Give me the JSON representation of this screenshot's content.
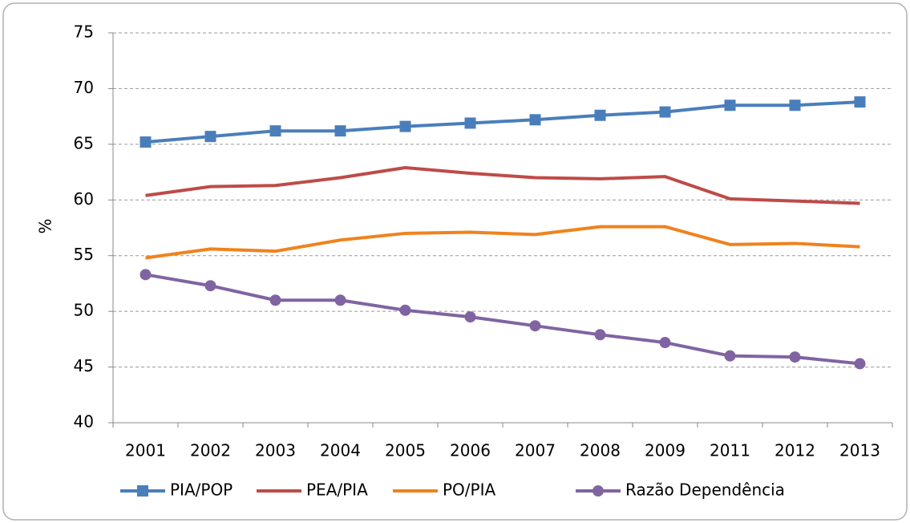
{
  "chart_data": {
    "type": "line",
    "y_label": "%",
    "categories": [
      "2001",
      "2002",
      "2003",
      "2004",
      "2005",
      "2006",
      "2007",
      "2008",
      "2009",
      "2011",
      "2012",
      "2013"
    ],
    "series": [
      {
        "name": "PIA/POP",
        "color": "#4a7ebb",
        "marker": "square",
        "values": [
          65.2,
          65.7,
          66.2,
          66.2,
          66.6,
          66.9,
          67.2,
          67.6,
          67.9,
          68.5,
          68.5,
          68.8
        ]
      },
      {
        "name": "PEA/PIA",
        "color": "#be4b48",
        "marker": "none",
        "values": [
          60.4,
          61.2,
          61.3,
          62.0,
          62.9,
          62.4,
          62.0,
          61.9,
          62.1,
          60.1,
          59.9,
          59.7
        ]
      },
      {
        "name": "PO/PIA",
        "color": "#f0821e",
        "marker": "none",
        "values": [
          54.8,
          55.6,
          55.4,
          56.4,
          57.0,
          57.1,
          56.9,
          57.6,
          57.6,
          56.0,
          56.1,
          55.8
        ]
      },
      {
        "name": "Razão Dependência",
        "color": "#8064a2",
        "marker": "circle",
        "values": [
          53.3,
          52.3,
          51.0,
          51.0,
          50.1,
          49.5,
          48.7,
          47.9,
          47.2,
          46.0,
          45.9,
          45.3
        ]
      }
    ],
    "ylim": [
      40,
      75
    ],
    "yticks": [
      40,
      45,
      50,
      55,
      60,
      65,
      70,
      75
    ],
    "grid": true,
    "legend": "bottom"
  }
}
